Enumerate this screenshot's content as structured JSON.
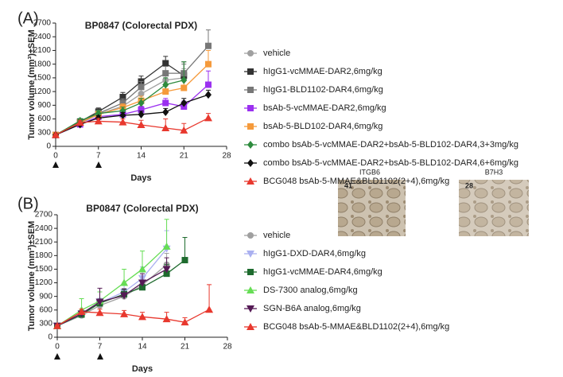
{
  "figure": {
    "panel_labels": [
      "(A)",
      "(B)"
    ],
    "images": [
      {
        "title": "ITGB6",
        "score": 41
      },
      {
        "title": "B7H3",
        "score": 28
      }
    ]
  },
  "chart_data": [
    {
      "type": "line",
      "title": "BP0847 (Colorectal PDX)",
      "xlabel": "Days",
      "ylabel": "Tumor volume (mm³)±SEM",
      "x": [
        0,
        4,
        7,
        11,
        14,
        18,
        21,
        25
      ],
      "xlim": [
        0,
        28
      ],
      "xticks": [
        0,
        7,
        14,
        21,
        28
      ],
      "ylim": [
        0,
        2700
      ],
      "yticks": [
        0,
        300,
        600,
        900,
        1200,
        1500,
        1800,
        2100,
        2400,
        2700
      ],
      "series": [
        {
          "name": "vehicle",
          "color": "#a0a0a0",
          "marker": "circle",
          "values": [
            250,
            500,
            700,
            880,
            1150,
            1450,
            1500,
            null
          ],
          "errors": [
            20,
            50,
            60,
            80,
            100,
            150,
            200,
            null
          ]
        },
        {
          "name": "hIgG1-vcMMAE-DAR2,6mg/kg",
          "color": "#333333",
          "marker": "square",
          "values": [
            250,
            540,
            760,
            1080,
            1420,
            1820,
            1550,
            null
          ],
          "errors": [
            20,
            60,
            80,
            100,
            120,
            150,
            300,
            null
          ]
        },
        {
          "name": "hIgG1-BLD1102-DAR4,6mg/kg",
          "color": "#777777",
          "marker": "square",
          "values": [
            250,
            520,
            720,
            950,
            1300,
            1600,
            1600,
            2200
          ],
          "errors": [
            20,
            50,
            70,
            90,
            120,
            150,
            200,
            350
          ]
        },
        {
          "name": "bsAb-5-vcMMAE-DAR2,6mg/kg",
          "color": "#9b30f0",
          "marker": "square",
          "values": [
            250,
            480,
            650,
            700,
            800,
            950,
            870,
            1350
          ],
          "errors": [
            20,
            40,
            60,
            70,
            80,
            100,
            120,
            300
          ]
        },
        {
          "name": "bsAb-5-BLD102-DAR4,6mg/kg",
          "color": "#f59a3b",
          "marker": "square",
          "values": [
            250,
            520,
            700,
            850,
            1000,
            1200,
            1280,
            1800
          ],
          "errors": [
            20,
            50,
            60,
            80,
            100,
            120,
            150,
            300
          ]
        },
        {
          "name": "combo bsAb-5-vcMMAE-DAR2+bsAb-5-BLD102-DAR4,3+3mg/kg",
          "color": "#2e8b3e",
          "marker": "diamond",
          "values": [
            250,
            560,
            720,
            780,
            950,
            1350,
            1450,
            null
          ],
          "errors": [
            20,
            50,
            60,
            80,
            100,
            150,
            400,
            null
          ]
        },
        {
          "name": "combo bsAb-5-vcMMAE-DAR2+bsAb-5-BLD102-DAR4,6+6mg/kg",
          "color": "#111111",
          "marker": "diamond",
          "values": [
            250,
            480,
            620,
            680,
            700,
            750,
            950,
            1130
          ],
          "errors": [
            20,
            40,
            50,
            60,
            70,
            80,
            100,
            100
          ]
        },
        {
          "name": "BCG048 bsAb-5-MMAE&BLD1102(2+4),6mg/kg",
          "color": "#e8382e",
          "marker": "triangle",
          "values": [
            250,
            520,
            550,
            530,
            470,
            400,
            350,
            620
          ],
          "errors": [
            20,
            40,
            60,
            70,
            100,
            200,
            150,
            100
          ]
        }
      ]
    },
    {
      "type": "line",
      "title": "BP0847 (Colorectal PDX)",
      "xlabel": "Days",
      "ylabel": "Tumor volume (mm³)±SEM",
      "x": [
        0,
        4,
        7,
        11,
        14,
        18,
        21,
        25
      ],
      "xlim": [
        0,
        28
      ],
      "xticks": [
        0,
        7,
        14,
        21,
        28
      ],
      "ylim": [
        0,
        2700
      ],
      "yticks": [
        0,
        300,
        600,
        900,
        1200,
        1500,
        1800,
        2100,
        2400,
        2700
      ],
      "series": [
        {
          "name": "vehicle",
          "color": "#a0a0a0",
          "marker": "circle",
          "values": [
            250,
            480,
            700,
            900,
            1150,
            1600,
            null,
            null
          ],
          "errors": [
            20,
            50,
            80,
            100,
            150,
            250,
            null,
            null
          ]
        },
        {
          "name": "hIgG1-DXD-DAR4,6mg/kg",
          "color": "#aab0f0",
          "marker": "triangle-down",
          "values": [
            250,
            500,
            760,
            1000,
            1300,
            1950,
            null,
            null
          ],
          "errors": [
            20,
            60,
            100,
            150,
            250,
            400,
            null,
            null
          ]
        },
        {
          "name": "hIgG1-vcMMAE-DAR4,6mg/kg",
          "color": "#1e6b2e",
          "marker": "square",
          "values": [
            250,
            500,
            750,
            950,
            1100,
            1400,
            1700,
            null
          ],
          "errors": [
            20,
            50,
            80,
            100,
            150,
            200,
            500,
            null
          ]
        },
        {
          "name": "DS-7300 analog,6mg/kg",
          "color": "#66dd55",
          "marker": "triangle",
          "values": [
            250,
            600,
            800,
            1200,
            1500,
            2000,
            null,
            null
          ],
          "errors": [
            20,
            250,
            200,
            300,
            400,
            600,
            null,
            null
          ]
        },
        {
          "name": "SGN-B6A analog,6mg/kg",
          "color": "#551a55",
          "marker": "triangle-down",
          "values": [
            250,
            520,
            780,
            920,
            1200,
            1500,
            null,
            null
          ],
          "errors": [
            20,
            60,
            300,
            150,
            200,
            250,
            null,
            null
          ]
        },
        {
          "name": "BCG048 bsAb-5-MMAE&BLD1102(2+4),6mg/kg",
          "color": "#e8382e",
          "marker": "triangle",
          "values": [
            250,
            560,
            540,
            510,
            450,
            400,
            330,
            610
          ],
          "errors": [
            20,
            60,
            80,
            80,
            100,
            150,
            100,
            550
          ]
        }
      ]
    }
  ]
}
